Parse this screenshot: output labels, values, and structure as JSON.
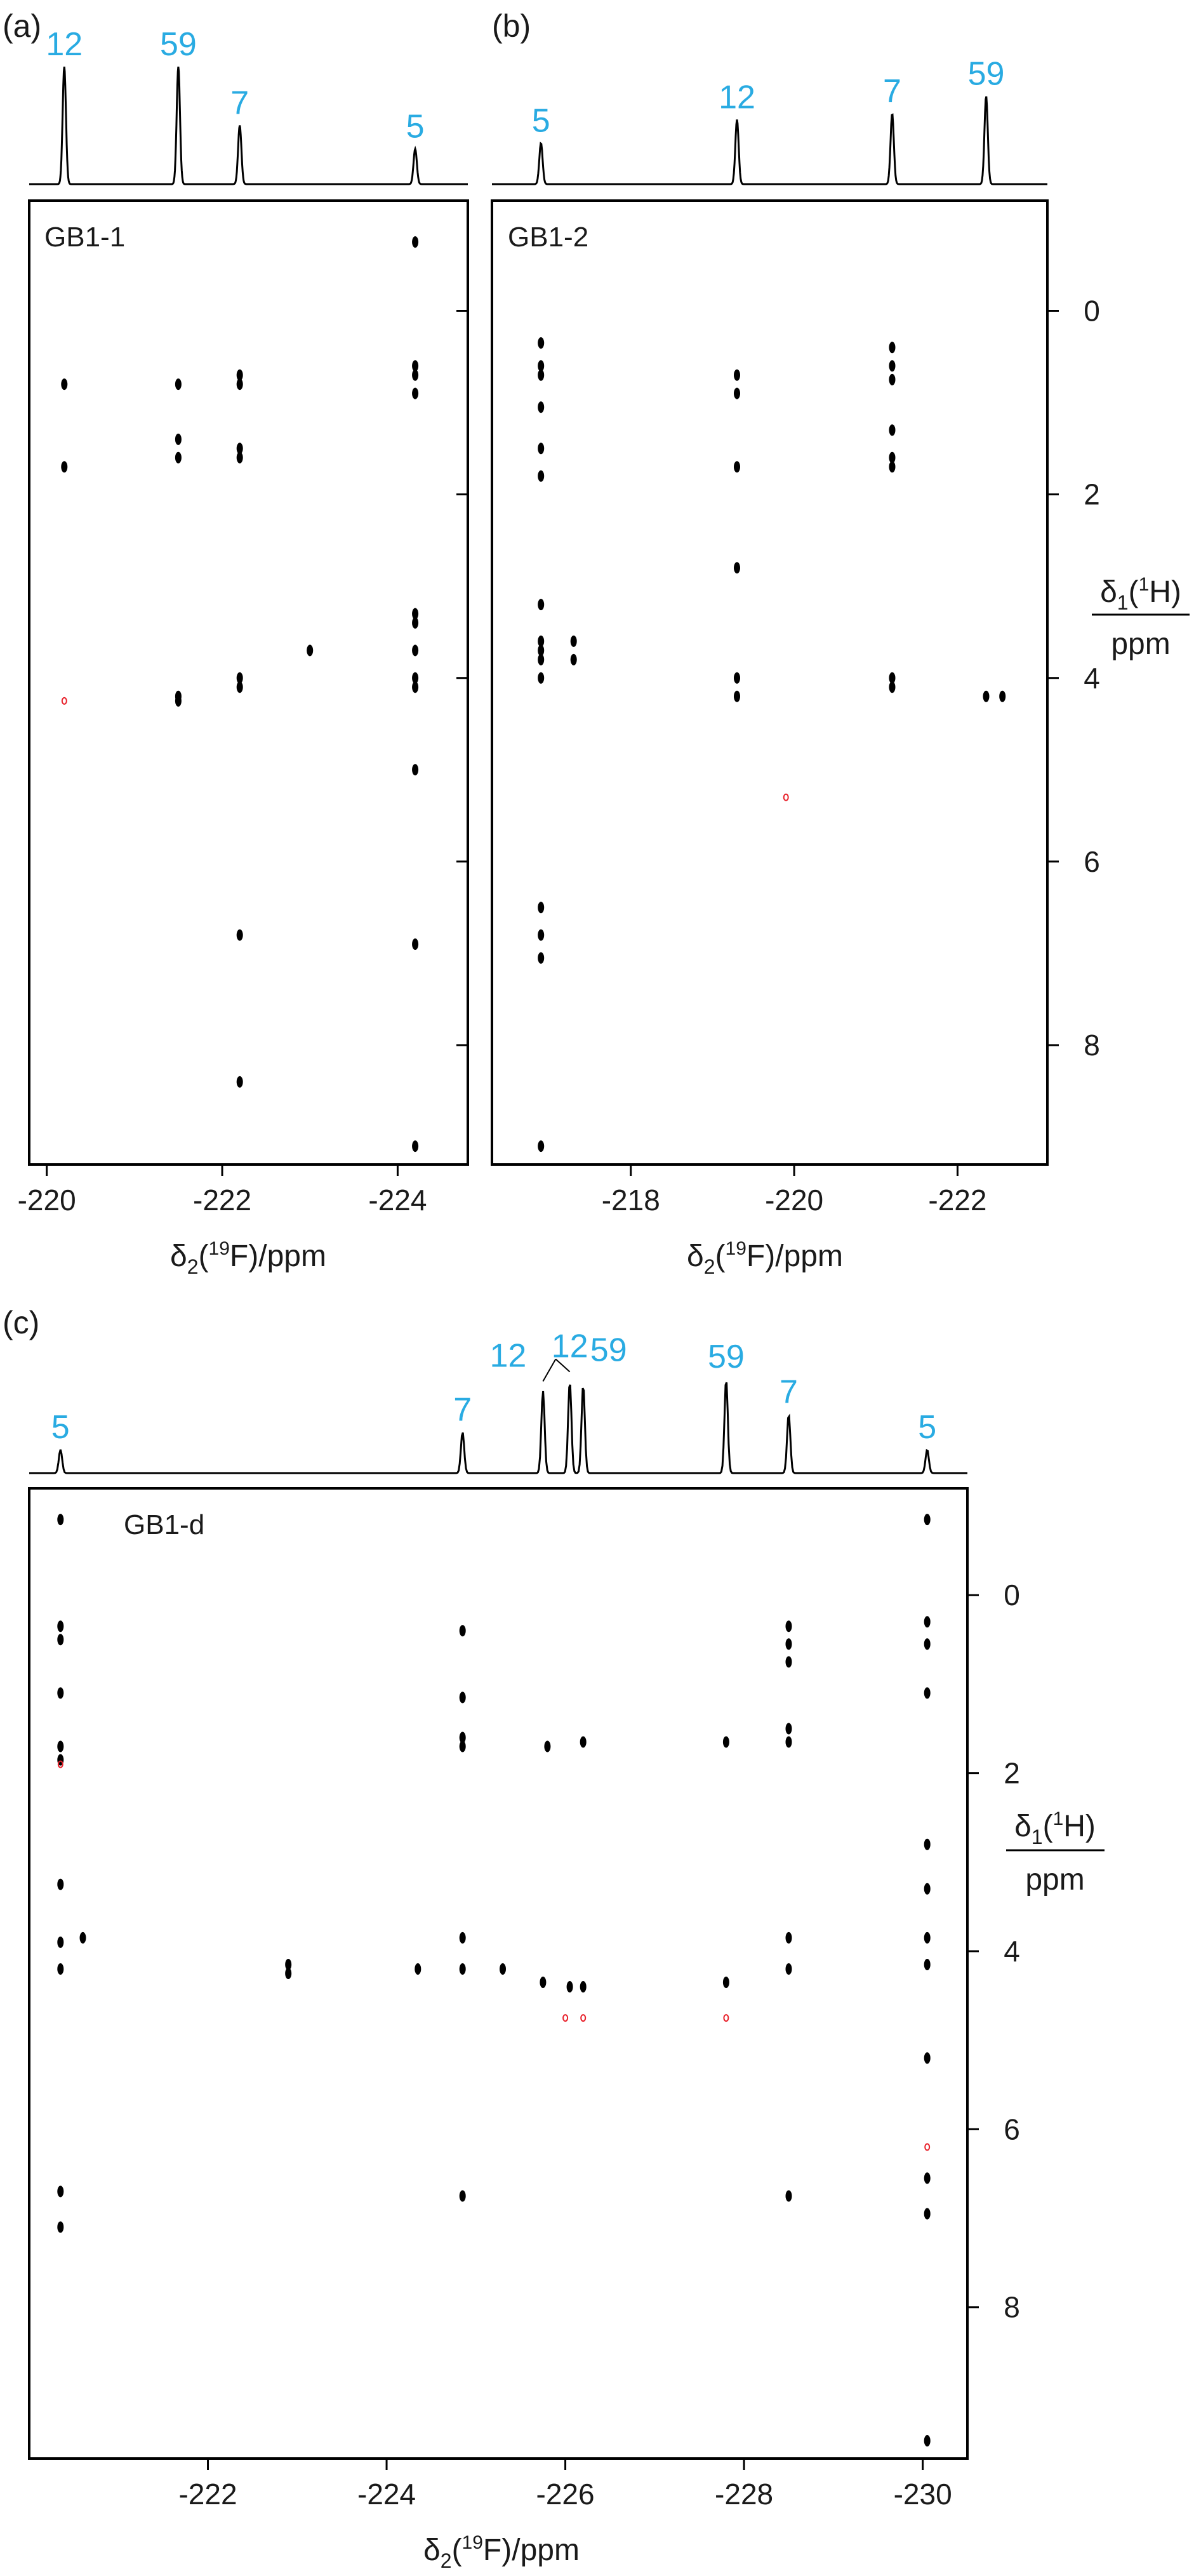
{
  "colors": {
    "peak_label": "#29abe2",
    "ink": "#000000",
    "negative_contour": "#e8202a"
  },
  "chart_data": [
    {
      "type": "scatter",
      "panel_label": "(a)",
      "sample_label": "GB1-1",
      "xlabel": "δ2(19F)/ppm",
      "ylabel_top": "δ1(1H)",
      "ylabel_bottom": "ppm",
      "xlim": [
        -219.8,
        -224.8
      ],
      "ylim": [
        -1.2,
        9.3
      ],
      "x_ticks": [
        -220,
        -222,
        -224
      ],
      "y_ticks": [
        0,
        2,
        4,
        6,
        8
      ],
      "y_tick_labels_shown": false,
      "spectrum_1d": [
        {
          "label": "12",
          "x": -220.2,
          "height": 1.0
        },
        {
          "label": "59",
          "x": -221.5,
          "height": 1.0
        },
        {
          "label": "7",
          "x": -222.2,
          "height": 0.5
        },
        {
          "label": "5",
          "x": -224.2,
          "height": 0.3
        }
      ],
      "cross_peaks": [
        [
          -224.2,
          -0.75
        ],
        [
          -220.2,
          0.8
        ],
        [
          -221.5,
          0.8
        ],
        [
          -222.2,
          0.7
        ],
        [
          -222.2,
          0.8
        ],
        [
          -224.2,
          0.6
        ],
        [
          -224.2,
          0.7
        ],
        [
          -224.2,
          0.9
        ],
        [
          -221.5,
          1.4
        ],
        [
          -221.5,
          1.6
        ],
        [
          -222.2,
          1.5
        ],
        [
          -222.2,
          1.6
        ],
        [
          -220.2,
          1.7
        ],
        [
          -224.2,
          3.3
        ],
        [
          -224.2,
          3.4
        ],
        [
          -224.2,
          3.7
        ],
        [
          -223.0,
          3.7
        ],
        [
          -222.2,
          4.0
        ],
        [
          -222.2,
          4.1
        ],
        [
          -224.2,
          4.0
        ],
        [
          -224.2,
          4.1
        ],
        [
          -221.5,
          4.2
        ],
        [
          -221.5,
          4.25
        ],
        [
          -224.2,
          5.0
        ],
        [
          -222.2,
          6.8
        ],
        [
          -224.2,
          6.9
        ],
        [
          -222.2,
          8.4
        ],
        [
          -224.2,
          9.1
        ]
      ],
      "negative_peaks": [
        [
          -220.2,
          4.25
        ]
      ]
    },
    {
      "type": "scatter",
      "panel_label": "(b)",
      "sample_label": "GB1-2",
      "xlabel": "δ2(19F)/ppm",
      "ylabel_top": "δ1(1H)",
      "ylabel_bottom": "ppm",
      "xlim": [
        -216.3,
        -223.1
      ],
      "ylim": [
        -1.2,
        9.3
      ],
      "x_ticks": [
        -218,
        -220,
        -222
      ],
      "y_ticks": [
        0,
        2,
        4,
        6,
        8
      ],
      "y_tick_labels_shown": true,
      "spectrum_1d": [
        {
          "label": "5",
          "x": -216.9,
          "height": 0.35
        },
        {
          "label": "12",
          "x": -219.3,
          "height": 0.55
        },
        {
          "label": "7",
          "x": -221.2,
          "height": 0.6
        },
        {
          "label": "59",
          "x": -222.35,
          "height": 0.75
        }
      ],
      "cross_peaks": [
        [
          -216.9,
          0.35
        ],
        [
          -216.9,
          0.6
        ],
        [
          -216.9,
          0.7
        ],
        [
          -216.9,
          1.05
        ],
        [
          -216.9,
          1.5
        ],
        [
          -216.9,
          1.8
        ],
        [
          -219.3,
          0.7
        ],
        [
          -219.3,
          0.9
        ],
        [
          -219.3,
          1.7
        ],
        [
          -219.3,
          2.8
        ],
        [
          -221.2,
          0.4
        ],
        [
          -221.2,
          0.6
        ],
        [
          -221.2,
          0.75
        ],
        [
          -221.2,
          1.3
        ],
        [
          -221.2,
          1.6
        ],
        [
          -221.2,
          1.7
        ],
        [
          -216.9,
          3.2
        ],
        [
          -216.9,
          3.6
        ],
        [
          -216.9,
          3.7
        ],
        [
          -216.9,
          3.8
        ],
        [
          -216.9,
          4.0
        ],
        [
          -217.3,
          3.6
        ],
        [
          -217.3,
          3.8
        ],
        [
          -219.3,
          4.0
        ],
        [
          -219.3,
          4.2
        ],
        [
          -221.2,
          4.0
        ],
        [
          -221.2,
          4.1
        ],
        [
          -222.35,
          4.2
        ],
        [
          -222.55,
          4.2
        ],
        [
          -216.9,
          6.5
        ],
        [
          -216.9,
          6.8
        ],
        [
          -216.9,
          7.05
        ],
        [
          -216.9,
          9.1
        ]
      ],
      "negative_peaks": [
        [
          -219.9,
          5.3
        ]
      ]
    },
    {
      "type": "scatter",
      "panel_label": "(c)",
      "sample_label": "GB1-d",
      "xlabel": "δ2(19F)/ppm",
      "ylabel_top": "δ1(1H)",
      "ylabel_bottom": "ppm",
      "xlim": [
        -220.0,
        -230.5
      ],
      "ylim": [
        -1.2,
        9.7
      ],
      "x_ticks": [
        -222,
        -224,
        -226,
        -228,
        -230
      ],
      "y_ticks": [
        0,
        2,
        4,
        6,
        8
      ],
      "y_tick_labels_shown": true,
      "spectrum_1d": [
        {
          "label": "5",
          "x": -220.35,
          "height": 0.2
        },
        {
          "label": "7",
          "x": -224.85,
          "height": 0.35
        },
        {
          "label": "12",
          "x": -225.75,
          "height": 0.7
        },
        {
          "label": "12",
          "x": -226.05,
          "height": 0.78
        },
        {
          "label": "59",
          "x": -226.2,
          "height": 0.75
        },
        {
          "label": "59",
          "x": -227.8,
          "height": 0.8
        },
        {
          "label": "7",
          "x": -228.5,
          "height": 0.5
        },
        {
          "label": "5",
          "x": -230.05,
          "height": 0.2
        }
      ],
      "cross_peaks": [
        [
          -220.35,
          -0.85
        ],
        [
          -220.35,
          0.35
        ],
        [
          -220.35,
          0.5
        ],
        [
          -220.35,
          1.1
        ],
        [
          -220.35,
          1.7
        ],
        [
          -220.35,
          1.85
        ],
        [
          -220.35,
          3.25
        ],
        [
          -220.35,
          3.9
        ],
        [
          -220.6,
          3.85
        ],
        [
          -220.35,
          4.2
        ],
        [
          -220.35,
          6.7
        ],
        [
          -220.35,
          7.1
        ],
        [
          -224.85,
          0.4
        ],
        [
          -224.85,
          1.15
        ],
        [
          -224.85,
          1.6
        ],
        [
          -224.85,
          1.7
        ],
        [
          -224.85,
          3.85
        ],
        [
          -224.85,
          4.2
        ],
        [
          -225.3,
          4.2
        ],
        [
          -225.75,
          4.35
        ],
        [
          -226.05,
          4.4
        ],
        [
          -226.2,
          4.4
        ],
        [
          -225.8,
          1.7
        ],
        [
          -226.2,
          1.65
        ],
        [
          -227.8,
          4.35
        ],
        [
          -227.8,
          1.65
        ],
        [
          -228.5,
          0.35
        ],
        [
          -228.5,
          0.55
        ],
        [
          -228.5,
          0.75
        ],
        [
          -228.5,
          1.5
        ],
        [
          -228.5,
          1.65
        ],
        [
          -228.5,
          3.85
        ],
        [
          -228.5,
          4.2
        ],
        [
          -230.05,
          -0.85
        ],
        [
          -230.05,
          0.3
        ],
        [
          -230.05,
          0.55
        ],
        [
          -230.05,
          1.1
        ],
        [
          -230.05,
          2.8
        ],
        [
          -230.05,
          3.3
        ],
        [
          -230.05,
          3.85
        ],
        [
          -230.05,
          4.15
        ],
        [
          -230.05,
          5.2
        ],
        [
          -230.05,
          6.55
        ],
        [
          -230.05,
          6.95
        ],
        [
          -230.05,
          9.5
        ],
        [
          -224.85,
          6.75
        ],
        [
          -222.9,
          4.15
        ],
        [
          -222.9,
          4.25
        ],
        [
          -224.35,
          4.2
        ],
        [
          -228.5,
          6.75
        ]
      ],
      "negative_peaks": [
        [
          -226.0,
          4.75
        ],
        [
          -226.2,
          4.75
        ],
        [
          -227.8,
          4.75
        ],
        [
          -230.05,
          6.2
        ],
        [
          -220.35,
          1.9
        ]
      ]
    }
  ]
}
